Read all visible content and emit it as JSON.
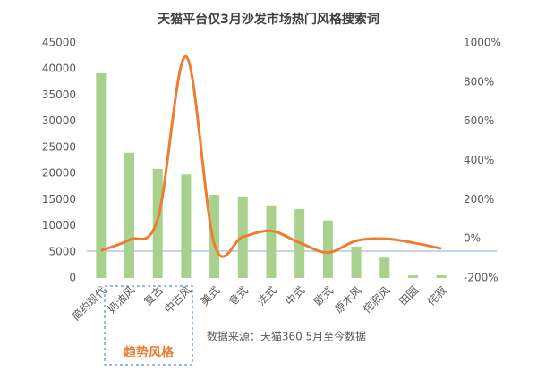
{
  "chart_data": {
    "type": "bar-line",
    "title": "天猫平台仅3月沙发市场热门风格搜索词",
    "source": "数据来源：天猫360 5月至今数据",
    "annotation": "趋势风格",
    "categories": [
      "简约现代",
      "奶油风",
      "复古",
      "中古风",
      "美式",
      "意式",
      "法式",
      "中式",
      "欧式",
      "原木风",
      "侘寂风",
      "田园",
      "侘寂"
    ],
    "series": [
      {
        "type": "bar",
        "color": "#a9d18e",
        "values": [
          39200,
          24000,
          20900,
          19800,
          15900,
          15600,
          13900,
          13200,
          11000,
          6000,
          3900,
          500,
          500
        ]
      },
      {
        "type": "line",
        "axis": "y2",
        "color": "#ed7d31",
        "values": [
          -60,
          -5,
          100,
          930,
          -30,
          10,
          40,
          -20,
          -70,
          -10,
          0,
          -20,
          -50
        ]
      }
    ],
    "ylim": [
      0,
      45000
    ],
    "yticks": [
      0,
      5000,
      10000,
      15000,
      20000,
      25000,
      30000,
      35000,
      40000,
      45000
    ],
    "y2lim": [
      -200,
      1000
    ],
    "y2ticks": [
      {
        "value": -200,
        "label": "-200%"
      },
      {
        "value": 0,
        "label": "0%"
      },
      {
        "value": 200,
        "label": "200%"
      },
      {
        "value": 400,
        "label": "400%"
      },
      {
        "value": 600,
        "label": "600%"
      },
      {
        "value": 800,
        "label": "800%"
      },
      {
        "value": 1000,
        "label": "1000%"
      }
    ]
  }
}
